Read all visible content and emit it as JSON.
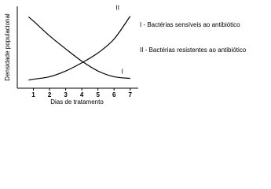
{
  "chart_data": {
    "type": "line",
    "x_label": "Dias de tratamento",
    "y_label": "Densidade populacional",
    "x": [
      0.7,
      1,
      2,
      3,
      4,
      5,
      6,
      7
    ],
    "series": [
      {
        "name": "I",
        "color": "#000000",
        "values": [
          87,
          82,
          64,
          48,
          33,
          21,
          14,
          12
        ]
      },
      {
        "name": "II",
        "color": "#000000",
        "values": [
          10,
          11,
          14,
          21,
          31,
          43,
          60,
          88
        ]
      }
    ],
    "legend": [
      "I - Bactérias sensíveis ao antibiótico",
      "II - Bactérias resistentes ao antibiótico"
    ],
    "xlim": [
      0,
      7.5
    ],
    "xticks": [
      1,
      2,
      3,
      4,
      5,
      6,
      7
    ],
    "ylim": [
      0,
      100
    ]
  }
}
